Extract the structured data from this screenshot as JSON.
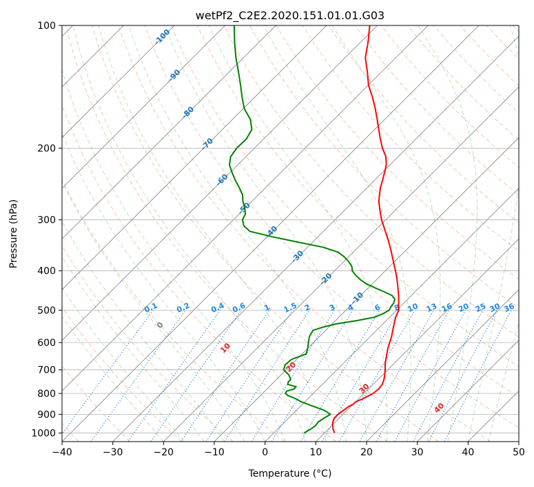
{
  "chart_data": {
    "type": "line",
    "title": "wetPf2_C2E2.2020.151.01.01.G03",
    "xlabel": "Temperature (°C)",
    "ylabel": "Pressure (hPa)",
    "xlim": [
      -40,
      50
    ],
    "ylim": [
      1050,
      100
    ],
    "y_scale": "log",
    "grid": true,
    "x_ticks": [
      -40,
      -30,
      -20,
      -10,
      0,
      10,
      20,
      30,
      40,
      50
    ],
    "x_tick_labels": [
      "−40",
      "−30",
      "−20",
      "−10",
      "0",
      "10",
      "20",
      "30",
      "40",
      "50"
    ],
    "y_ticks": [
      1000,
      900,
      800,
      700,
      600,
      500,
      400,
      300,
      200,
      100
    ],
    "y_tick_labels": [
      "1000",
      "900",
      "800",
      "700",
      "600",
      "500",
      "400",
      "300",
      "200",
      "100"
    ],
    "skew_deg": 45,
    "colors": {
      "temperature": "#ff0000",
      "dewpoint": "#008000",
      "dry_adiabat": "#f4a582",
      "moist_adiabat": "#2ca02c",
      "mixing_ratio": "#1e88e5",
      "isotherm": "#808080",
      "dry_label": "#d62728",
      "moist_label": "#1f77b4",
      "mix_label": "#1e88e5"
    },
    "series": [
      {
        "key": "temperature",
        "pressure": [
          1000,
          980,
          960,
          940,
          920,
          900,
          880,
          860,
          850,
          840,
          820,
          800,
          780,
          760,
          740,
          720,
          700,
          680,
          660,
          640,
          620,
          600,
          580,
          560,
          540,
          520,
          500,
          480,
          460,
          440,
          420,
          400,
          380,
          360,
          340,
          320,
          300,
          290,
          280,
          270,
          260,
          250,
          240,
          230,
          220,
          210,
          200,
          190,
          180,
          170,
          160,
          150,
          140,
          130,
          120,
          110,
          100
        ],
        "temperature": [
          12.0,
          11.0,
          10.2,
          9.5,
          9.0,
          9.0,
          9.3,
          9.6,
          10.0,
          10.0,
          11.0,
          11.8,
          12.0,
          11.8,
          11.2,
          10.4,
          9.5,
          8.5,
          7.6,
          6.7,
          5.8,
          5.0,
          4.2,
          3.2,
          2.2,
          1.2,
          0.4,
          -1.0,
          -2.5,
          -4.2,
          -6.0,
          -8.0,
          -10.2,
          -12.5,
          -15.0,
          -17.8,
          -20.8,
          -22.2,
          -23.6,
          -25.0,
          -26.2,
          -27.4,
          -28.4,
          -29.5,
          -30.7,
          -32.4,
          -34.8,
          -37.0,
          -39.2,
          -41.5,
          -44.0,
          -46.8,
          -50.0,
          -52.8,
          -56.0,
          -58.5,
          -61.5
        ]
      },
      {
        "key": "dewpoint",
        "pressure": [
          1000,
          980,
          960,
          940,
          920,
          900,
          880,
          860,
          840,
          820,
          810,
          800,
          790,
          780,
          770,
          760,
          750,
          740,
          730,
          720,
          700,
          680,
          660,
          640,
          620,
          600,
          580,
          560,
          550,
          540,
          530,
          520,
          510,
          500,
          490,
          480,
          470,
          460,
          450,
          440,
          430,
          420,
          410,
          400,
          390,
          380,
          370,
          360,
          350,
          340,
          330,
          320,
          310,
          300,
          290,
          280,
          270,
          260,
          250,
          240,
          230,
          220,
          210,
          200,
          190,
          180,
          170,
          160,
          150,
          140,
          130,
          120,
          110,
          100
        ],
        "temperature": [
          6.0,
          6.5,
          6.8,
          6.6,
          7.0,
          7.5,
          5.5,
          2.5,
          -0.5,
          -3.0,
          -4.5,
          -5.5,
          -5.7,
          -4.7,
          -4.7,
          -6.8,
          -7.2,
          -7.2,
          -7.8,
          -8.5,
          -10.5,
          -11.2,
          -11.0,
          -9.2,
          -10.0,
          -11.0,
          -12.0,
          -12.5,
          -11.2,
          -9.2,
          -5.8,
          -3.0,
          -2.0,
          -1.5,
          -1.8,
          -2.0,
          -2.5,
          -3.8,
          -6.2,
          -8.8,
          -11.3,
          -13.3,
          -15.0,
          -16.5,
          -17.5,
          -19.0,
          -20.8,
          -23.0,
          -27.0,
          -33.0,
          -39.0,
          -44.5,
          -46.8,
          -48.2,
          -48.8,
          -50.2,
          -51.8,
          -53.2,
          -55.2,
          -57.4,
          -59.5,
          -61.6,
          -63.0,
          -63.5,
          -63.4,
          -64.2,
          -66.5,
          -69.8,
          -72.5,
          -75.2,
          -78.2,
          -81.5,
          -84.8,
          -88.2
        ]
      }
    ],
    "isotherm_labels": [
      {
        "text": "-100",
        "t": -100,
        "p": 107
      },
      {
        "text": "-90",
        "t": -90,
        "p": 133
      },
      {
        "text": "-80",
        "t": -80,
        "p": 164
      },
      {
        "text": "-70",
        "t": -70,
        "p": 196
      },
      {
        "text": "-60",
        "t": -60,
        "p": 240
      },
      {
        "text": "-50",
        "t": -50,
        "p": 282
      },
      {
        "text": "-40",
        "t": -40,
        "p": 322
      },
      {
        "text": "-30",
        "t": -30,
        "p": 370
      },
      {
        "text": "-20",
        "t": -20,
        "p": 420
      },
      {
        "text": "-10",
        "t": -10,
        "p": 468
      }
    ],
    "dry_adiabat_labels": [
      {
        "text": "0",
        "t": 0,
        "p": 545
      },
      {
        "text": "10",
        "t": 10,
        "p": 620
      },
      {
        "text": "20",
        "t": 20,
        "p": 690
      },
      {
        "text": "30",
        "t": 30,
        "p": 780
      },
      {
        "text": "40",
        "t": 40,
        "p": 870
      }
    ],
    "mixing_ratio_labels": [
      "0.1",
      "0.2",
      "0.4",
      "0.6",
      "1",
      "1.5",
      "2",
      "3",
      "4",
      "6",
      "8",
      "10",
      "13",
      "16",
      "20",
      "25",
      "30",
      "36"
    ],
    "mixing_ratio_values": [
      0.1,
      0.2,
      0.4,
      0.6,
      1,
      1.5,
      2,
      3,
      4,
      6,
      8,
      10,
      13,
      16,
      20,
      25,
      30,
      36
    ]
  }
}
